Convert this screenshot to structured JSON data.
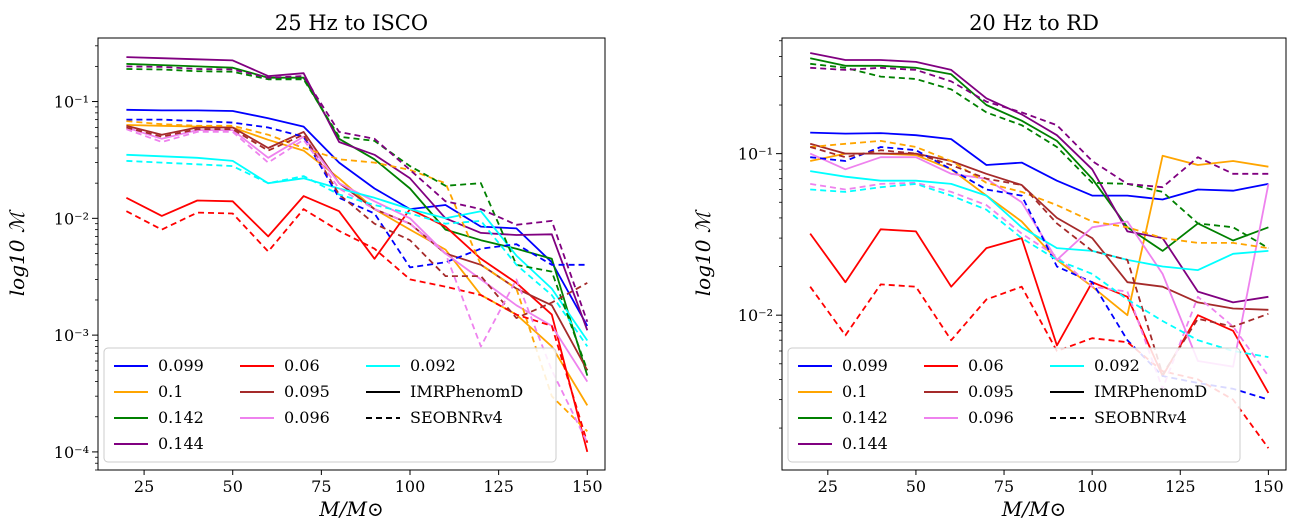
{
  "colors": {
    "0.099": "#0000ff",
    "0.1": "#ffa500",
    "0.142": "#008000",
    "0.144": "#800080",
    "0.06": "#ff0000",
    "0.095": "#a52a2a",
    "0.096": "#ee82ee",
    "0.092": "#00ffff",
    "IMRPhenomD": "#000000",
    "SEOBNRv4": "#000000"
  },
  "chart_data": [
    {
      "type": "line",
      "title": "25 Hz to ISCO",
      "xlabel": "M/M⊙",
      "ylabel": "log10 ℳ",
      "yscale": "log",
      "xlim": [
        12,
        155
      ],
      "ylim": [
        7e-05,
        0.35
      ],
      "xticks": [
        25,
        50,
        75,
        100,
        125,
        150
      ],
      "xtick_labels": [
        "25",
        "50",
        "75",
        "100",
        "125",
        "150"
      ],
      "yticks": [
        0.0001,
        0.001,
        0.01,
        0.1
      ],
      "ytick_labels": [
        "10⁻⁴",
        "10⁻³",
        "10⁻²",
        "10⁻¹"
      ],
      "x": [
        20,
        30,
        40,
        50,
        60,
        70,
        80,
        90,
        100,
        110,
        120,
        130,
        140,
        150
      ],
      "legend_location": "lower-left",
      "series": [
        {
          "name": "0.099",
          "model": "IMRPhenomD",
          "values": [
            0.085,
            0.084,
            0.084,
            0.083,
            0.072,
            0.061,
            0.03,
            0.018,
            0.012,
            0.013,
            0.0085,
            0.0082,
            0.0042,
            0.0012
          ]
        },
        {
          "name": "0.1",
          "model": "IMRPhenomD",
          "values": [
            0.063,
            0.062,
            0.061,
            0.06,
            0.047,
            0.038,
            0.022,
            0.012,
            0.008,
            0.0054,
            0.0022,
            0.0015,
            0.0008,
            0.00025
          ]
        },
        {
          "name": "0.142",
          "model": "IMRPhenomD",
          "values": [
            0.21,
            0.205,
            0.2,
            0.195,
            0.16,
            0.16,
            0.048,
            0.032,
            0.018,
            0.008,
            0.0065,
            0.0055,
            0.0045,
            0.00045
          ]
        },
        {
          "name": "0.144",
          "model": "IMRPhenomD",
          "values": [
            0.24,
            0.235,
            0.23,
            0.225,
            0.165,
            0.175,
            0.045,
            0.035,
            0.022,
            0.01,
            0.0075,
            0.0072,
            0.0073,
            0.0011
          ]
        },
        {
          "name": "0.06",
          "model": "IMRPhenomD",
          "values": [
            0.015,
            0.0105,
            0.0142,
            0.014,
            0.007,
            0.0155,
            0.0115,
            0.0045,
            0.012,
            0.0085,
            0.0045,
            0.0028,
            0.0015,
            0.0001
          ]
        },
        {
          "name": "0.095",
          "model": "IMRPhenomD",
          "values": [
            0.062,
            0.052,
            0.06,
            0.06,
            0.04,
            0.055,
            0.02,
            0.012,
            0.009,
            0.005,
            0.004,
            0.0025,
            0.0018,
            0.0005
          ]
        },
        {
          "name": "0.096",
          "model": "IMRPhenomD",
          "values": [
            0.06,
            0.048,
            0.057,
            0.057,
            0.033,
            0.05,
            0.02,
            0.014,
            0.01,
            0.005,
            0.003,
            0.0018,
            0.0012,
            0.0004
          ]
        },
        {
          "name": "0.092",
          "model": "IMRPhenomD",
          "values": [
            0.035,
            0.034,
            0.033,
            0.031,
            0.02,
            0.022,
            0.018,
            0.015,
            0.012,
            0.01,
            0.0115,
            0.0048,
            0.0025,
            0.0009
          ]
        },
        {
          "name": "0.099",
          "model": "SEOBNRv4",
          "values": [
            0.07,
            0.07,
            0.068,
            0.066,
            0.06,
            0.05,
            0.015,
            0.011,
            0.0038,
            0.0042,
            0.0055,
            0.006,
            0.004,
            0.004
          ]
        },
        {
          "name": "0.1",
          "model": "SEOBNRv4",
          "values": [
            0.068,
            0.064,
            0.062,
            0.062,
            0.052,
            0.04,
            0.032,
            0.03,
            0.026,
            0.02,
            0.004,
            0.0025,
            0.0003,
            0.00015
          ]
        },
        {
          "name": "0.142",
          "model": "SEOBNRv4",
          "values": [
            0.19,
            0.188,
            0.182,
            0.18,
            0.155,
            0.155,
            0.05,
            0.046,
            0.028,
            0.019,
            0.02,
            0.004,
            0.0035,
            0.0005
          ]
        },
        {
          "name": "0.144",
          "model": "SEOBNRv4",
          "values": [
            0.2,
            0.198,
            0.19,
            0.188,
            0.16,
            0.165,
            0.055,
            0.048,
            0.026,
            0.014,
            0.012,
            0.0088,
            0.0095,
            0.0013
          ]
        },
        {
          "name": "0.06",
          "model": "SEOBNRv4",
          "values": [
            0.0115,
            0.008,
            0.0112,
            0.011,
            0.0052,
            0.012,
            0.0078,
            0.0055,
            0.003,
            0.0026,
            0.0022,
            0.0015,
            0.0012,
            0.00012
          ]
        },
        {
          "name": "0.095",
          "model": "SEOBNRv4",
          "values": [
            0.06,
            0.05,
            0.058,
            0.058,
            0.038,
            0.052,
            0.016,
            0.009,
            0.0065,
            0.0032,
            0.0032,
            0.0014,
            0.0019,
            0.0028
          ]
        },
        {
          "name": "0.096",
          "model": "SEOBNRv4",
          "values": [
            0.058,
            0.045,
            0.055,
            0.055,
            0.03,
            0.047,
            0.018,
            0.012,
            0.009,
            0.005,
            0.0008,
            0.003,
            0.0005,
            0.00012
          ]
        },
        {
          "name": "0.092",
          "model": "SEOBNRv4",
          "values": [
            0.031,
            0.03,
            0.029,
            0.028,
            0.02,
            0.023,
            0.016,
            0.013,
            0.011,
            0.009,
            0.0095,
            0.004,
            0.0022,
            0.0008
          ]
        }
      ]
    },
    {
      "type": "line",
      "title": "20 Hz to RD",
      "xlabel": "M/M⊙",
      "ylabel": "log10 ℳ",
      "yscale": "log",
      "xlim": [
        12,
        155
      ],
      "ylim": [
        0.0011,
        0.52
      ],
      "xticks": [
        25,
        50,
        75,
        100,
        125,
        150
      ],
      "xtick_labels": [
        "25",
        "50",
        "75",
        "100",
        "125",
        "150"
      ],
      "yticks": [
        0.01,
        0.1
      ],
      "ytick_labels": [
        "10⁻²",
        "10⁻¹"
      ],
      "x": [
        20,
        30,
        40,
        50,
        60,
        70,
        80,
        90,
        100,
        110,
        120,
        130,
        140,
        150
      ],
      "legend_location": "lower-left",
      "series": [
        {
          "name": "0.099",
          "model": "IMRPhenomD",
          "values": [
            0.135,
            0.133,
            0.134,
            0.13,
            0.123,
            0.085,
            0.088,
            0.068,
            0.055,
            0.055,
            0.052,
            0.06,
            0.059,
            0.065
          ]
        },
        {
          "name": "0.1",
          "model": "IMRPhenomD",
          "values": [
            0.09,
            0.1,
            0.1,
            0.098,
            0.08,
            0.055,
            0.038,
            0.022,
            0.015,
            0.01,
            0.097,
            0.085,
            0.09,
            0.083
          ]
        },
        {
          "name": "0.142",
          "model": "IMRPhenomD",
          "values": [
            0.39,
            0.35,
            0.35,
            0.34,
            0.31,
            0.2,
            0.16,
            0.12,
            0.07,
            0.035,
            0.025,
            0.037,
            0.029,
            0.035
          ]
        },
        {
          "name": "0.144",
          "model": "IMRPhenomD",
          "values": [
            0.42,
            0.38,
            0.38,
            0.37,
            0.33,
            0.22,
            0.175,
            0.13,
            0.08,
            0.033,
            0.03,
            0.014,
            0.012,
            0.013
          ]
        },
        {
          "name": "0.06",
          "model": "IMRPhenomD",
          "values": [
            0.032,
            0.016,
            0.034,
            0.033,
            0.015,
            0.026,
            0.03,
            0.0065,
            0.016,
            0.013,
            0.0042,
            0.01,
            0.008,
            0.0033
          ]
        },
        {
          "name": "0.095",
          "model": "IMRPhenomD",
          "values": [
            0.115,
            0.1,
            0.1,
            0.1,
            0.09,
            0.075,
            0.064,
            0.04,
            0.03,
            0.016,
            0.015,
            0.012,
            0.011,
            0.0108
          ]
        },
        {
          "name": "0.096",
          "model": "IMRPhenomD",
          "values": [
            0.1,
            0.08,
            0.095,
            0.095,
            0.075,
            0.07,
            0.05,
            0.022,
            0.035,
            0.038,
            0.018,
            0.0052,
            0.0048,
            0.065
          ]
        },
        {
          "name": "0.092",
          "model": "IMRPhenomD",
          "values": [
            0.078,
            0.072,
            0.068,
            0.068,
            0.065,
            0.055,
            0.035,
            0.026,
            0.025,
            0.022,
            0.02,
            0.019,
            0.024,
            0.025
          ]
        },
        {
          "name": "0.099",
          "model": "SEOBNRv4",
          "values": [
            0.095,
            0.09,
            0.11,
            0.105,
            0.08,
            0.06,
            0.055,
            0.02,
            0.016,
            0.007,
            0.0042,
            0.0038,
            0.0035,
            0.003
          ]
        },
        {
          "name": "0.1",
          "model": "SEOBNRv4",
          "values": [
            0.11,
            0.115,
            0.12,
            0.11,
            0.09,
            0.066,
            0.058,
            0.048,
            0.038,
            0.035,
            0.03,
            0.028,
            0.028,
            0.026
          ]
        },
        {
          "name": "0.142",
          "model": "SEOBNRv4",
          "values": [
            0.36,
            0.34,
            0.3,
            0.29,
            0.25,
            0.18,
            0.15,
            0.11,
            0.066,
            0.065,
            0.058,
            0.037,
            0.035,
            0.026
          ]
        },
        {
          "name": "0.144",
          "model": "SEOBNRv4",
          "values": [
            0.34,
            0.33,
            0.34,
            0.33,
            0.28,
            0.21,
            0.18,
            0.15,
            0.09,
            0.065,
            0.062,
            0.095,
            0.075,
            0.075
          ]
        },
        {
          "name": "0.06",
          "model": "SEOBNRv4",
          "values": [
            0.015,
            0.0075,
            0.0155,
            0.015,
            0.007,
            0.0125,
            0.015,
            0.006,
            0.0072,
            0.0068,
            0.0045,
            0.004,
            0.003,
            0.0015
          ]
        },
        {
          "name": "0.095",
          "model": "SEOBNRv4",
          "values": [
            0.11,
            0.095,
            0.105,
            0.1,
            0.085,
            0.07,
            0.064,
            0.037,
            0.025,
            0.022,
            0.0043,
            0.0095,
            0.0085,
            0.0102
          ]
        },
        {
          "name": "0.096",
          "model": "SEOBNRv4",
          "values": [
            0.065,
            0.06,
            0.065,
            0.066,
            0.058,
            0.048,
            0.032,
            0.023,
            0.015,
            0.014,
            0.0035,
            0.013,
            0.0085,
            0.0042
          ]
        },
        {
          "name": "0.092",
          "model": "SEOBNRv4",
          "values": [
            0.06,
            0.058,
            0.062,
            0.065,
            0.055,
            0.045,
            0.03,
            0.022,
            0.018,
            0.0125,
            0.0092,
            0.007,
            0.006,
            0.0055
          ]
        }
      ]
    }
  ],
  "legend": {
    "entries": [
      {
        "label": "0.099",
        "color": "#0000ff",
        "style": "solid"
      },
      {
        "label": "0.1",
        "color": "#ffa500",
        "style": "solid"
      },
      {
        "label": "0.142",
        "color": "#008000",
        "style": "solid"
      },
      {
        "label": "0.144",
        "color": "#800080",
        "style": "solid"
      },
      {
        "label": "0.06",
        "color": "#ff0000",
        "style": "solid"
      },
      {
        "label": "0.095",
        "color": "#a52a2a",
        "style": "solid"
      },
      {
        "label": "0.096",
        "color": "#ee82ee",
        "style": "solid"
      },
      {
        "label": "0.092",
        "color": "#00ffff",
        "style": "solid"
      },
      {
        "label": "IMRPhenomD",
        "color": "#000000",
        "style": "solid"
      },
      {
        "label": "SEOBNRv4",
        "color": "#000000",
        "style": "dashed"
      }
    ]
  }
}
